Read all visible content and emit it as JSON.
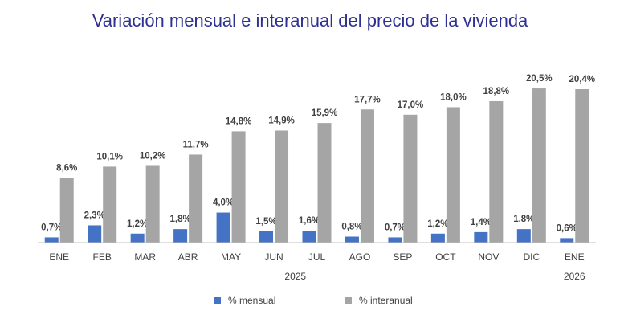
{
  "chart_data": {
    "type": "bar",
    "title": "Variación mensual e interanual del precio de la vivienda",
    "categories": [
      "ENE",
      "FEB",
      "MAR",
      "ABR",
      "MAY",
      "JUN",
      "JUL",
      "AGO",
      "SEP",
      "OCT",
      "NOV",
      "DIC",
      "ENE"
    ],
    "category_groups": [
      {
        "label": "2025",
        "count": 12
      },
      {
        "label": "2026",
        "count": 1
      }
    ],
    "series": [
      {
        "name": "% mensual",
        "color": "#4472c4",
        "values": [
          0.7,
          2.3,
          1.2,
          1.8,
          4.0,
          1.5,
          1.6,
          0.8,
          0.7,
          1.2,
          1.4,
          1.8,
          0.6
        ],
        "value_labels": [
          "0,7%",
          "2,3%",
          "1,2%",
          "1,8%",
          "4,0%",
          "1,5%",
          "1,6%",
          "0,8%",
          "0,7%",
          "1,2%",
          "1,4%",
          "1,8%",
          "0,6%"
        ]
      },
      {
        "name": "% interanual",
        "color": "#a5a5a5",
        "values": [
          8.6,
          10.1,
          10.2,
          11.7,
          14.8,
          14.9,
          15.9,
          17.7,
          17.0,
          18.0,
          18.8,
          20.5,
          20.4
        ],
        "value_labels": [
          "8,6%",
          "10,1%",
          "10,2%",
          "11,7%",
          "14,8%",
          "14,9%",
          "15,9%",
          "17,7%",
          "17,0%",
          "18,0%",
          "18,8%",
          "20,5%",
          "20,4%"
        ]
      }
    ],
    "ylim": [
      0,
      22
    ],
    "legend": "bottom"
  }
}
